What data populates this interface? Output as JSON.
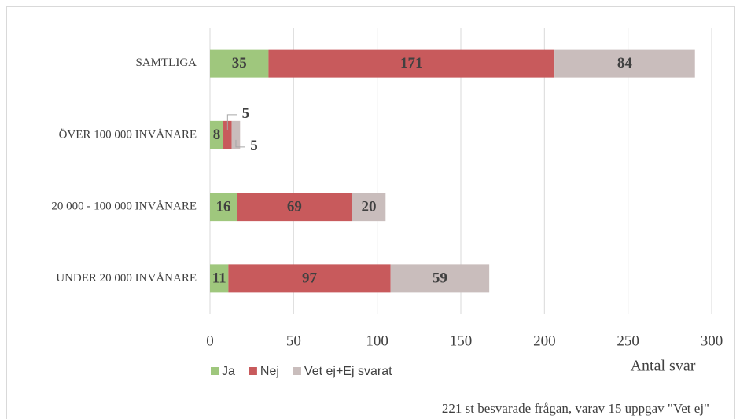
{
  "chart_data": {
    "type": "bar",
    "orientation": "horizontal",
    "stacked": true,
    "categories": [
      "SAMTLIGA",
      "ÖVER 100 000 INVÅNARE",
      "20 000 - 100 000 INVÅNARE",
      "UNDER 20 000 INVÅNARE"
    ],
    "series": [
      {
        "name": "Ja",
        "color": "#9fc77d",
        "values": [
          35,
          8,
          16,
          11
        ]
      },
      {
        "name": "Nej",
        "color": "#c85a5c",
        "values": [
          171,
          5,
          69,
          97
        ]
      },
      {
        "name": "Vet ej+Ej svarat",
        "color": "#c9bdbc",
        "values": [
          84,
          5,
          20,
          59
        ]
      }
    ],
    "xlim": [
      0,
      300
    ],
    "xticks": [
      0,
      50,
      100,
      150,
      200,
      250,
      300
    ],
    "xlabel": "Antal svar",
    "grid": true,
    "legend": "bottom-left",
    "note": "221 st besvarade frågan, varav 15 uppgav \"Vet ej\""
  }
}
